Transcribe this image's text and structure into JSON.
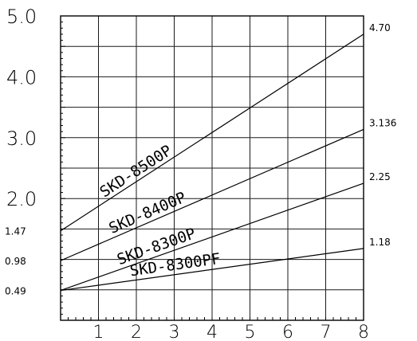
{
  "chart_data": {
    "type": "line",
    "title": "",
    "xlabel": "",
    "ylabel": "",
    "xlim": [
      0,
      8
    ],
    "ylim": [
      0,
      5.0
    ],
    "grid": true,
    "x_ticks": [
      "1",
      "2",
      "3",
      "4",
      "5",
      "6",
      "7",
      "8"
    ],
    "y_major_ticks": [
      "5.0",
      "4.0",
      "3.0",
      "2.0"
    ],
    "y_extra_ticks": [
      {
        "label": "1.47",
        "value": 1.47
      },
      {
        "label": "0.98",
        "value": 0.98
      },
      {
        "label": "0.49",
        "value": 0.49
      }
    ],
    "series": [
      {
        "name": "SKD-8500P",
        "x": [
          0,
          8
        ],
        "values": [
          1.47,
          4.7
        ],
        "end_label": "4.70"
      },
      {
        "name": "SKD-8400P",
        "x": [
          0,
          8
        ],
        "values": [
          0.98,
          3.136
        ],
        "end_label": "3.136"
      },
      {
        "name": "SKD-8300P",
        "x": [
          0,
          8
        ],
        "values": [
          0.49,
          2.25
        ],
        "end_label": "2.25"
      },
      {
        "name": "SKD-8300PF",
        "x": [
          0,
          8
        ],
        "values": [
          0.49,
          1.18
        ],
        "end_label": "1.18"
      }
    ]
  }
}
